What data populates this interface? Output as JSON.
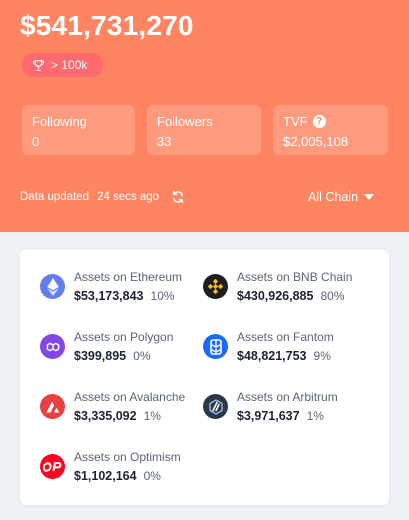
{
  "header": {
    "total_value": "$541,731,270",
    "rank_badge": "> 100k"
  },
  "stats": [
    {
      "label": "Following",
      "value": "0"
    },
    {
      "label": "Followers",
      "value": "33"
    },
    {
      "label": "TVF",
      "value": "$2,005,108"
    }
  ],
  "update": {
    "label": "Data updated",
    "ago": "24 secs ago"
  },
  "chain_filter": {
    "selected": "All Chain"
  },
  "assets": [
    {
      "label": "Assets on Ethereum",
      "amount": "$53,173,843",
      "percent": "10%",
      "icon": "ethereum-icon",
      "color": "#627eea"
    },
    {
      "label": "Assets on BNB Chain",
      "amount": "$430,926,885",
      "percent": "80%",
      "icon": "bnb-chain-icon",
      "color": "#1e1e1e"
    },
    {
      "label": "Assets on Polygon",
      "amount": "$399,895",
      "percent": "0%",
      "icon": "polygon-icon",
      "color": "#8247e5"
    },
    {
      "label": "Assets on Fantom",
      "amount": "$48,821,753",
      "percent": "9%",
      "icon": "fantom-icon",
      "color": "#1969ff"
    },
    {
      "label": "Assets on Avalanche",
      "amount": "$3,335,092",
      "percent": "1%",
      "icon": "avalanche-icon",
      "color": "#e84142"
    },
    {
      "label": "Assets on Arbitrum",
      "amount": "$3,971,637",
      "percent": "1%",
      "icon": "arbitrum-icon",
      "color": "#2d374b"
    },
    {
      "label": "Assets on Optimism",
      "amount": "$1,102,164",
      "percent": "0%",
      "icon": "optimism-icon",
      "color": "#ff0420"
    }
  ],
  "colors": {
    "hero_bg": "#ff8462",
    "badge_bg": "#ff6a6f",
    "page_bg": "#eef1f5"
  }
}
